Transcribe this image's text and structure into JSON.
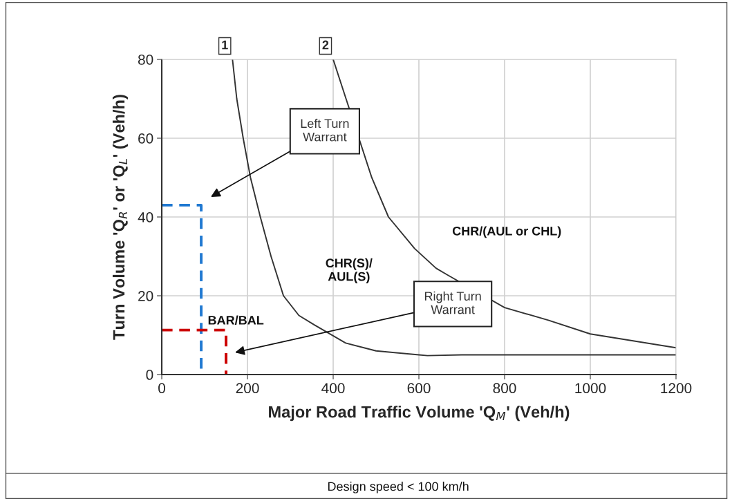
{
  "chart_data": {
    "type": "line",
    "xlabel": "Major Road Traffic Volume 'Q$_{M}$' (Veh/h)",
    "ylabel": "Turn Volume 'Q$_{R}$' or 'Q$_{L}$' (Veh/h)",
    "xlim": [
      0,
      1200
    ],
    "xticks": [
      0,
      200,
      400,
      600,
      800,
      1000,
      1200
    ],
    "ylim": [
      0,
      80
    ],
    "yticks": [
      0,
      20,
      40,
      60,
      80
    ],
    "grid": true,
    "legend": false,
    "marker": "none",
    "series": [
      {
        "name": "1",
        "color": "#333333",
        "line_style": "solid",
        "x": [
          165,
          175,
          190,
          207,
          230,
          255,
          284,
          320,
          356,
          429,
          500,
          600,
          620,
          700,
          1200
        ],
        "values": [
          80,
          70,
          60,
          50,
          40,
          30,
          20,
          15,
          12.6,
          8,
          6,
          5,
          4.8,
          5,
          5
        ]
      },
      {
        "name": "2",
        "color": "#333333",
        "line_style": "solid",
        "x": [
          400,
          430,
          490,
          529,
          590,
          640,
          665,
          800,
          902,
          1000,
          1200
        ],
        "values": [
          80,
          70,
          50,
          40,
          32,
          27,
          25.4,
          17,
          13.8,
          10.3,
          6.8
        ]
      },
      {
        "color": "#1f78d1",
        "line_style": "dashed",
        "x": [
          0,
          92,
          92
        ],
        "values": [
          43,
          43,
          0
        ]
      },
      {
        "color": "#cc0000",
        "line_style": "dashed",
        "x": [
          0,
          150,
          150
        ],
        "values": [
          11.3,
          11.3,
          0
        ]
      }
    ],
    "annotations": [
      "Left Turn\nWarrant",
      "Right Turn\nWarrant",
      "BAR/BAL",
      "CHR(S)/\nAUL(S)",
      "CHR/(AUL or CHL)",
      "Design speed < 100 km/h"
    ]
  }
}
